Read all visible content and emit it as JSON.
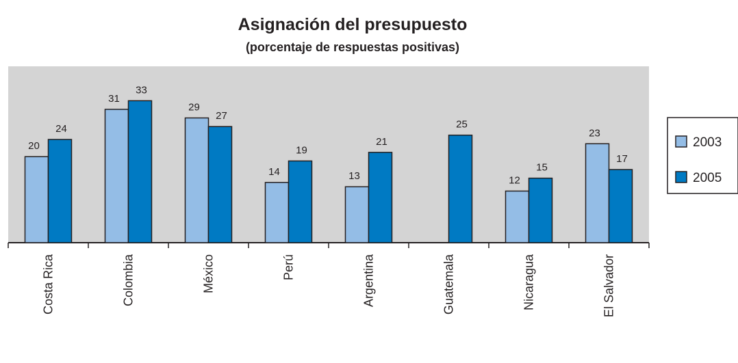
{
  "chart_data": {
    "type": "bar",
    "title": "Asignación del presupuesto",
    "subtitle": "(porcentaje de respuestas positivas)",
    "categories": [
      "Costa Rica",
      "Colombia",
      "México",
      "Perú",
      "Argentina",
      "Guatemala",
      "Nicaragua",
      "El Salvador"
    ],
    "series": [
      {
        "name": "2003",
        "color": "#94bde6",
        "values": [
          20,
          31,
          29,
          14,
          13,
          null,
          12,
          23
        ]
      },
      {
        "name": "2005",
        "color": "#007ac3",
        "values": [
          24,
          33,
          27,
          19,
          21,
          25,
          15,
          17
        ]
      }
    ],
    "ylim": [
      0,
      41
    ],
    "legend": "right"
  }
}
